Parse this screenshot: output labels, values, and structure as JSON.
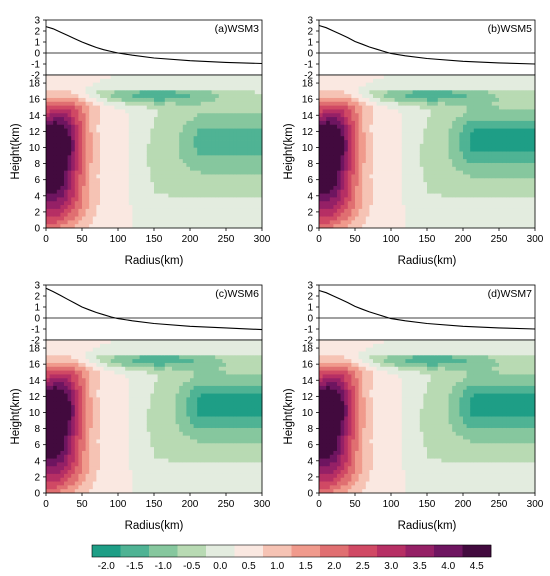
{
  "figure": {
    "colorbar": {
      "tick_labels": [
        "-2.0",
        "-1.5",
        "-1.0",
        "-0.5",
        "0.0",
        "0.5",
        "1.0",
        "1.5",
        "2.0",
        "2.5",
        "3.0",
        "3.5",
        "4.0",
        "4.5"
      ],
      "colors": [
        "#1e9e86",
        "#4fb394",
        "#86c79e",
        "#b8dab3",
        "#e3ecdf",
        "#fae8e1",
        "#f6c3b4",
        "#f09a8c",
        "#e06f71",
        "#d04964",
        "#b62f64",
        "#952066",
        "#6e1560",
        "#420a3e"
      ]
    }
  },
  "chart_data": [
    {
      "type": "contour+line",
      "label": "(a)WSM3",
      "xlabel": "Radius(km)",
      "ylabel": "Height(km)",
      "xlim": [
        0,
        300
      ],
      "ylim": [
        0,
        19
      ],
      "xticks": [
        0,
        50,
        100,
        150,
        200,
        250,
        300
      ],
      "yticks": [
        0,
        2,
        4,
        6,
        8,
        10,
        12,
        14,
        16,
        18
      ],
      "line_ylim": [
        -2,
        3
      ],
      "line_yticks": [
        -2,
        -1,
        0,
        1,
        2,
        3
      ],
      "line": {
        "x": [
          0,
          10,
          20,
          30,
          40,
          50,
          60,
          70,
          80,
          90,
          100,
          120,
          150,
          200,
          250,
          300
        ],
        "y": [
          2.4,
          2.2,
          1.9,
          1.6,
          1.3,
          1.0,
          0.75,
          0.5,
          0.3,
          0.15,
          0.0,
          -0.2,
          -0.45,
          -0.7,
          -0.85,
          -0.95
        ]
      },
      "core_peak": 4.5,
      "outer_min": -1.5
    },
    {
      "type": "contour+line",
      "label": "(b)WSM5",
      "xlabel": "Radius(km)",
      "ylabel": "Height(km)",
      "xlim": [
        0,
        300
      ],
      "ylim": [
        0,
        19
      ],
      "xticks": [
        0,
        50,
        100,
        150,
        200,
        250,
        300
      ],
      "yticks": [
        0,
        2,
        4,
        6,
        8,
        10,
        12,
        14,
        16,
        18
      ],
      "line_ylim": [
        -2,
        3
      ],
      "line_yticks": [
        -2,
        -1,
        0,
        1,
        2,
        3
      ],
      "line": {
        "x": [
          0,
          10,
          20,
          30,
          40,
          50,
          60,
          70,
          80,
          90,
          100,
          120,
          150,
          200,
          250,
          300
        ],
        "y": [
          2.5,
          2.3,
          2.0,
          1.7,
          1.4,
          1.05,
          0.8,
          0.55,
          0.35,
          0.15,
          -0.05,
          -0.25,
          -0.5,
          -0.75,
          -0.9,
          -1.0
        ]
      },
      "core_peak": 4.5,
      "outer_min": -2.0
    },
    {
      "type": "contour+line",
      "label": "(c)WSM6",
      "xlabel": "Radius(km)",
      "ylabel": "Height(km)",
      "xlim": [
        0,
        300
      ],
      "ylim": [
        0,
        19
      ],
      "xticks": [
        0,
        50,
        100,
        150,
        200,
        250,
        300
      ],
      "yticks": [
        0,
        2,
        4,
        6,
        8,
        10,
        12,
        14,
        16,
        18
      ],
      "line_ylim": [
        -2,
        3
      ],
      "line_yticks": [
        -2,
        -1,
        0,
        1,
        2,
        3
      ],
      "line": {
        "x": [
          0,
          10,
          20,
          30,
          40,
          50,
          60,
          70,
          80,
          90,
          100,
          120,
          150,
          200,
          250,
          300
        ],
        "y": [
          2.7,
          2.4,
          2.05,
          1.7,
          1.35,
          1.0,
          0.75,
          0.5,
          0.3,
          0.1,
          -0.05,
          -0.25,
          -0.5,
          -0.75,
          -0.9,
          -1.05
        ]
      },
      "core_peak": 4.5,
      "outer_min": -2.0
    },
    {
      "type": "contour+line",
      "label": "(d)WSM7",
      "xlabel": "Radius(km)",
      "ylabel": "Height(km)",
      "xlim": [
        0,
        300
      ],
      "ylim": [
        0,
        19
      ],
      "xticks": [
        0,
        50,
        100,
        150,
        200,
        250,
        300
      ],
      "yticks": [
        0,
        2,
        4,
        6,
        8,
        10,
        12,
        14,
        16,
        18
      ],
      "line_ylim": [
        -2,
        3
      ],
      "line_yticks": [
        -2,
        -1,
        0,
        1,
        2,
        3
      ],
      "line": {
        "x": [
          0,
          10,
          20,
          30,
          40,
          50,
          60,
          70,
          80,
          90,
          100,
          120,
          150,
          200,
          250,
          300
        ],
        "y": [
          2.5,
          2.3,
          2.0,
          1.7,
          1.4,
          1.05,
          0.8,
          0.55,
          0.35,
          0.15,
          -0.05,
          -0.25,
          -0.5,
          -0.75,
          -0.9,
          -1.0
        ]
      },
      "core_peak": 4.5,
      "outer_min": -2.0
    }
  ]
}
